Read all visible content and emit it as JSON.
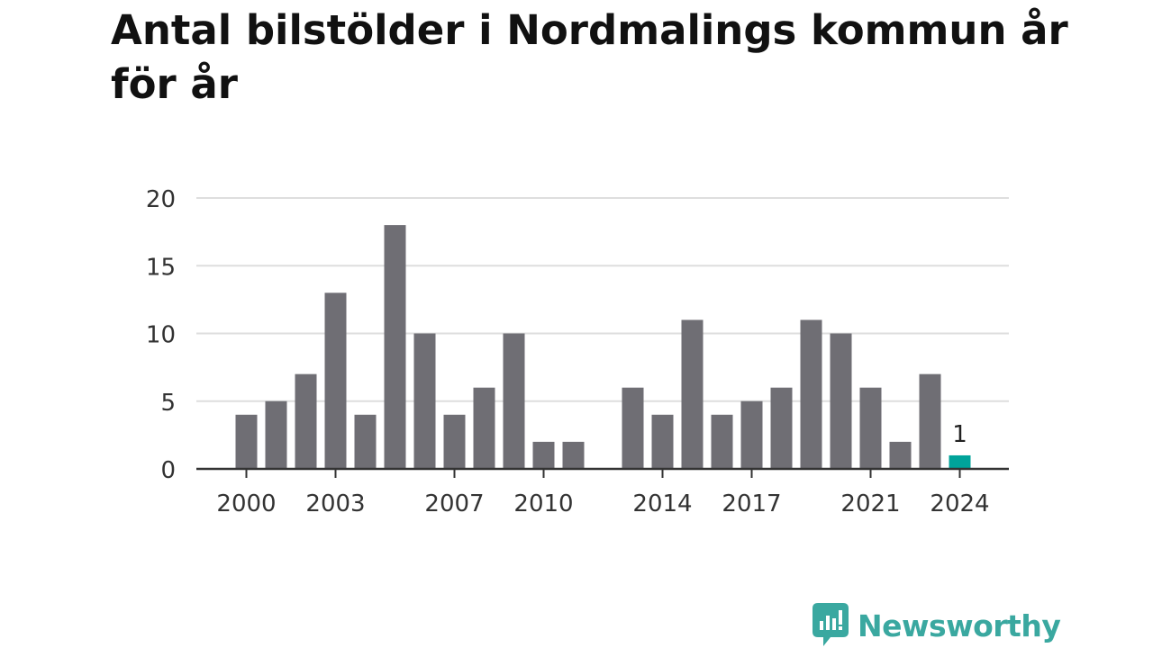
{
  "title": "Antal bilstölder i Nordmalings kommun år för år",
  "brand": {
    "name": "Newsworthy",
    "icon": "newsworthy-logo-icon",
    "color": "#3aa8a0"
  },
  "chart_data": {
    "type": "bar",
    "x": [
      2000,
      2001,
      2002,
      2003,
      2004,
      2005,
      2006,
      2007,
      2008,
      2009,
      2010,
      2011,
      2012,
      2013,
      2014,
      2015,
      2016,
      2017,
      2018,
      2019,
      2020,
      2021,
      2022,
      2023,
      2024
    ],
    "values": [
      4,
      5,
      7,
      13,
      4,
      18,
      10,
      4,
      6,
      10,
      2,
      2,
      0,
      6,
      4,
      11,
      4,
      5,
      6,
      11,
      10,
      6,
      2,
      7,
      1
    ],
    "x_tick_labels": [
      "2000",
      "2003",
      "2007",
      "2010",
      "2014",
      "2017",
      "2021",
      "2024"
    ],
    "y_ticks": [
      0,
      5,
      10,
      15,
      20
    ],
    "ylim": [
      0,
      20
    ],
    "xlabel": "",
    "ylabel": "",
    "highlight": {
      "x": 2024,
      "label": "1",
      "color": "#00a39a"
    },
    "bar_color": "#6f6e74",
    "grid": true
  }
}
